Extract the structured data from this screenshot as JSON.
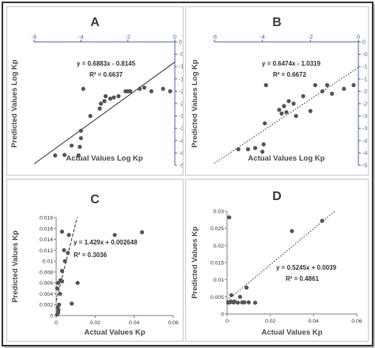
{
  "colors": {
    "axis_top": "#4a67a8",
    "axis_bottom": "#808080",
    "point": "#555555",
    "title": "#3d3d3d",
    "text": "#333333"
  },
  "chart_data": [
    {
      "panel": "A",
      "type": "scatter",
      "title": "A",
      "xlabel": "Actual Values Log Kp",
      "ylabel": "Predicted Values Log Kp",
      "xlim": [
        -6,
        0
      ],
      "ylim": [
        -5,
        0
      ],
      "xticks": [
        -6,
        -4,
        -2,
        0
      ],
      "xtick_labels": [
        "-6",
        "-4",
        "-2",
        "0"
      ],
      "yticks": [
        0,
        -0.5,
        -1,
        -1.5,
        -2,
        -2.5,
        -3,
        -3.5,
        -4,
        -4.5,
        -5
      ],
      "ytick_labels": [
        "0",
        "-0.5",
        "-1",
        "-1.5",
        "-2",
        "-2.5",
        "-3",
        "-3.5",
        "-4",
        "-4.5",
        "-5"
      ],
      "axis_position": "top-right",
      "equation": "y = 0.6883x - 0.8145",
      "r_squared": "R² = 0.6637",
      "trendline": {
        "slope": 0.6883,
        "intercept": -0.8145,
        "style": "solid"
      },
      "points": [
        [
          -5.1,
          -4.6
        ],
        [
          -4.7,
          -4.58
        ],
        [
          -4.4,
          -4.2
        ],
        [
          -4.1,
          -4.6
        ],
        [
          -4.05,
          -4.25
        ],
        [
          -4.0,
          -3.9
        ],
        [
          -4.0,
          -3.6
        ],
        [
          -3.9,
          -1.9
        ],
        [
          -3.6,
          -3.0
        ],
        [
          -3.2,
          -2.7
        ],
        [
          -3.15,
          -2.5
        ],
        [
          -3.0,
          -2.4
        ],
        [
          -2.95,
          -2.2
        ],
        [
          -2.75,
          -2.3
        ],
        [
          -2.6,
          -2.25
        ],
        [
          -2.4,
          -2.2
        ],
        [
          -2.1,
          -2.0
        ],
        [
          -2.0,
          -2.0
        ],
        [
          -1.9,
          -2.0
        ],
        [
          -1.5,
          -1.9
        ],
        [
          -1.3,
          -1.85
        ],
        [
          -1.0,
          -2.0
        ],
        [
          -0.5,
          -1.9
        ],
        [
          -0.2,
          -2.0
        ]
      ]
    },
    {
      "panel": "B",
      "type": "scatter",
      "title": "B",
      "xlabel": "Actual Values Log Kp",
      "ylabel": "Predicted Values Log Kp",
      "xlim": [
        -6,
        0
      ],
      "ylim": [
        -5,
        0
      ],
      "xticks": [
        -6,
        -4,
        -2,
        0
      ],
      "xtick_labels": [
        "-6",
        "-4",
        "-2",
        "0"
      ],
      "yticks": [
        0,
        -0.5,
        -1,
        -1.5,
        -2,
        -2.5,
        -3,
        -3.5,
        -4,
        -4.5,
        -5
      ],
      "ytick_labels": [
        "0",
        "-0.5",
        "-1",
        "-1.5",
        "-2",
        "-2.5",
        "-3",
        "-3.5",
        "-4",
        "-4.5",
        "-5"
      ],
      "axis_position": "top-right",
      "equation": "y = 0.6474x - 1.0319",
      "r_squared": "R² = 0.6672",
      "trendline": {
        "slope": 0.6474,
        "intercept": -1.0319,
        "style": "dotted"
      },
      "points": [
        [
          -5.0,
          -4.35
        ],
        [
          -4.6,
          -4.35
        ],
        [
          -4.3,
          -4.3
        ],
        [
          -4.0,
          -4.45
        ],
        [
          -3.95,
          -4.15
        ],
        [
          -3.9,
          -3.3
        ],
        [
          -3.85,
          -1.75
        ],
        [
          -3.3,
          -2.75
        ],
        [
          -3.2,
          -2.9
        ],
        [
          -3.1,
          -2.6
        ],
        [
          -3.0,
          -2.85
        ],
        [
          -2.9,
          -2.4
        ],
        [
          -2.7,
          -2.5
        ],
        [
          -2.6,
          -3.0
        ],
        [
          -2.3,
          -2.2
        ],
        [
          -2.0,
          -2.8
        ],
        [
          -1.8,
          -1.75
        ],
        [
          -1.5,
          -2.0
        ],
        [
          -1.3,
          -1.75
        ],
        [
          -1.1,
          -2.1
        ],
        [
          -0.6,
          -1.9
        ],
        [
          -0.2,
          -1.75
        ]
      ]
    },
    {
      "panel": "C",
      "type": "scatter",
      "title": "C",
      "xlabel": "Actual Values Kp",
      "ylabel": "Predicted Values Kp",
      "xlim": [
        0,
        0.06
      ],
      "ylim": [
        0,
        0.018
      ],
      "xticks": [
        0,
        0.02,
        0.04,
        0.06
      ],
      "xtick_labels": [
        "0",
        "0.02",
        "0.04",
        "0.06"
      ],
      "yticks": [
        0,
        0.002,
        0.004,
        0.006,
        0.008,
        0.01,
        0.012,
        0.014,
        0.016,
        0.018
      ],
      "ytick_labels": [
        "0",
        "0.002",
        "0.004",
        "0.006",
        "0.008",
        "0.01",
        "0.012",
        "0.014",
        "0.016",
        "0.018"
      ],
      "axis_position": "bottom-left",
      "equation": "y = 1.429x + 0.002648",
      "r_squared": "R² = 0.3036",
      "trendline": {
        "slope": 1.429,
        "intercept": 0.002648,
        "style": "dashed"
      },
      "points": [
        [
          0.0005,
          0.0002
        ],
        [
          0.001,
          0.0005
        ],
        [
          0.0012,
          0.001
        ],
        [
          0.0008,
          0.0015
        ],
        [
          0.0015,
          0.002
        ],
        [
          0.002,
          0.004
        ],
        [
          0.0005,
          0.005
        ],
        [
          0.001,
          0.006
        ],
        [
          0.0022,
          0.0065
        ],
        [
          0.003,
          0.0063
        ],
        [
          0.003,
          0.0082
        ],
        [
          0.003,
          0.0154
        ],
        [
          0.004,
          0.012
        ],
        [
          0.0045,
          0.01
        ],
        [
          0.006,
          0.0115
        ],
        [
          0.0065,
          0.0148
        ],
        [
          0.008,
          0.0022
        ],
        [
          0.011,
          0.006
        ],
        [
          0.03,
          0.0148
        ],
        [
          0.044,
          0.0153
        ]
      ]
    },
    {
      "panel": "D",
      "type": "scatter",
      "title": "D",
      "xlabel": "Actual Values Kp",
      "ylabel": "Predicted Values Kp",
      "xlim": [
        0,
        0.06
      ],
      "ylim": [
        0,
        0.03
      ],
      "xticks": [
        0,
        0.02,
        0.04,
        0.06
      ],
      "xtick_labels": [
        "0",
        "0.02",
        "0.04",
        "0.06"
      ],
      "yticks": [
        0,
        0.005,
        0.01,
        0.015,
        0.02,
        0.025,
        0.03
      ],
      "ytick_labels": [
        "0",
        "0.005",
        "0.01",
        "0.015",
        "0.02",
        "0.025",
        "0.03"
      ],
      "axis_position": "bottom-left",
      "equation": "y = 0.5245x + 0.0039",
      "r_squared": "R² = 0.4861",
      "trendline": {
        "slope": 0.5245,
        "intercept": 0.0039,
        "style": "dotted"
      },
      "points": [
        [
          0.0005,
          0.0033
        ],
        [
          0.001,
          0.0034
        ],
        [
          0.0015,
          0.0035
        ],
        [
          0.002,
          0.0036
        ],
        [
          0.0025,
          0.0035
        ],
        [
          0.003,
          0.0034
        ],
        [
          0.0035,
          0.0036
        ],
        [
          0.001,
          0.0282
        ],
        [
          0.002,
          0.0055
        ],
        [
          0.005,
          0.0033
        ],
        [
          0.006,
          0.005
        ],
        [
          0.007,
          0.0034
        ],
        [
          0.008,
          0.0034
        ],
        [
          0.009,
          0.0077
        ],
        [
          0.01,
          0.0034
        ],
        [
          0.013,
          0.0033
        ],
        [
          0.03,
          0.0242
        ],
        [
          0.044,
          0.0272
        ]
      ]
    }
  ]
}
